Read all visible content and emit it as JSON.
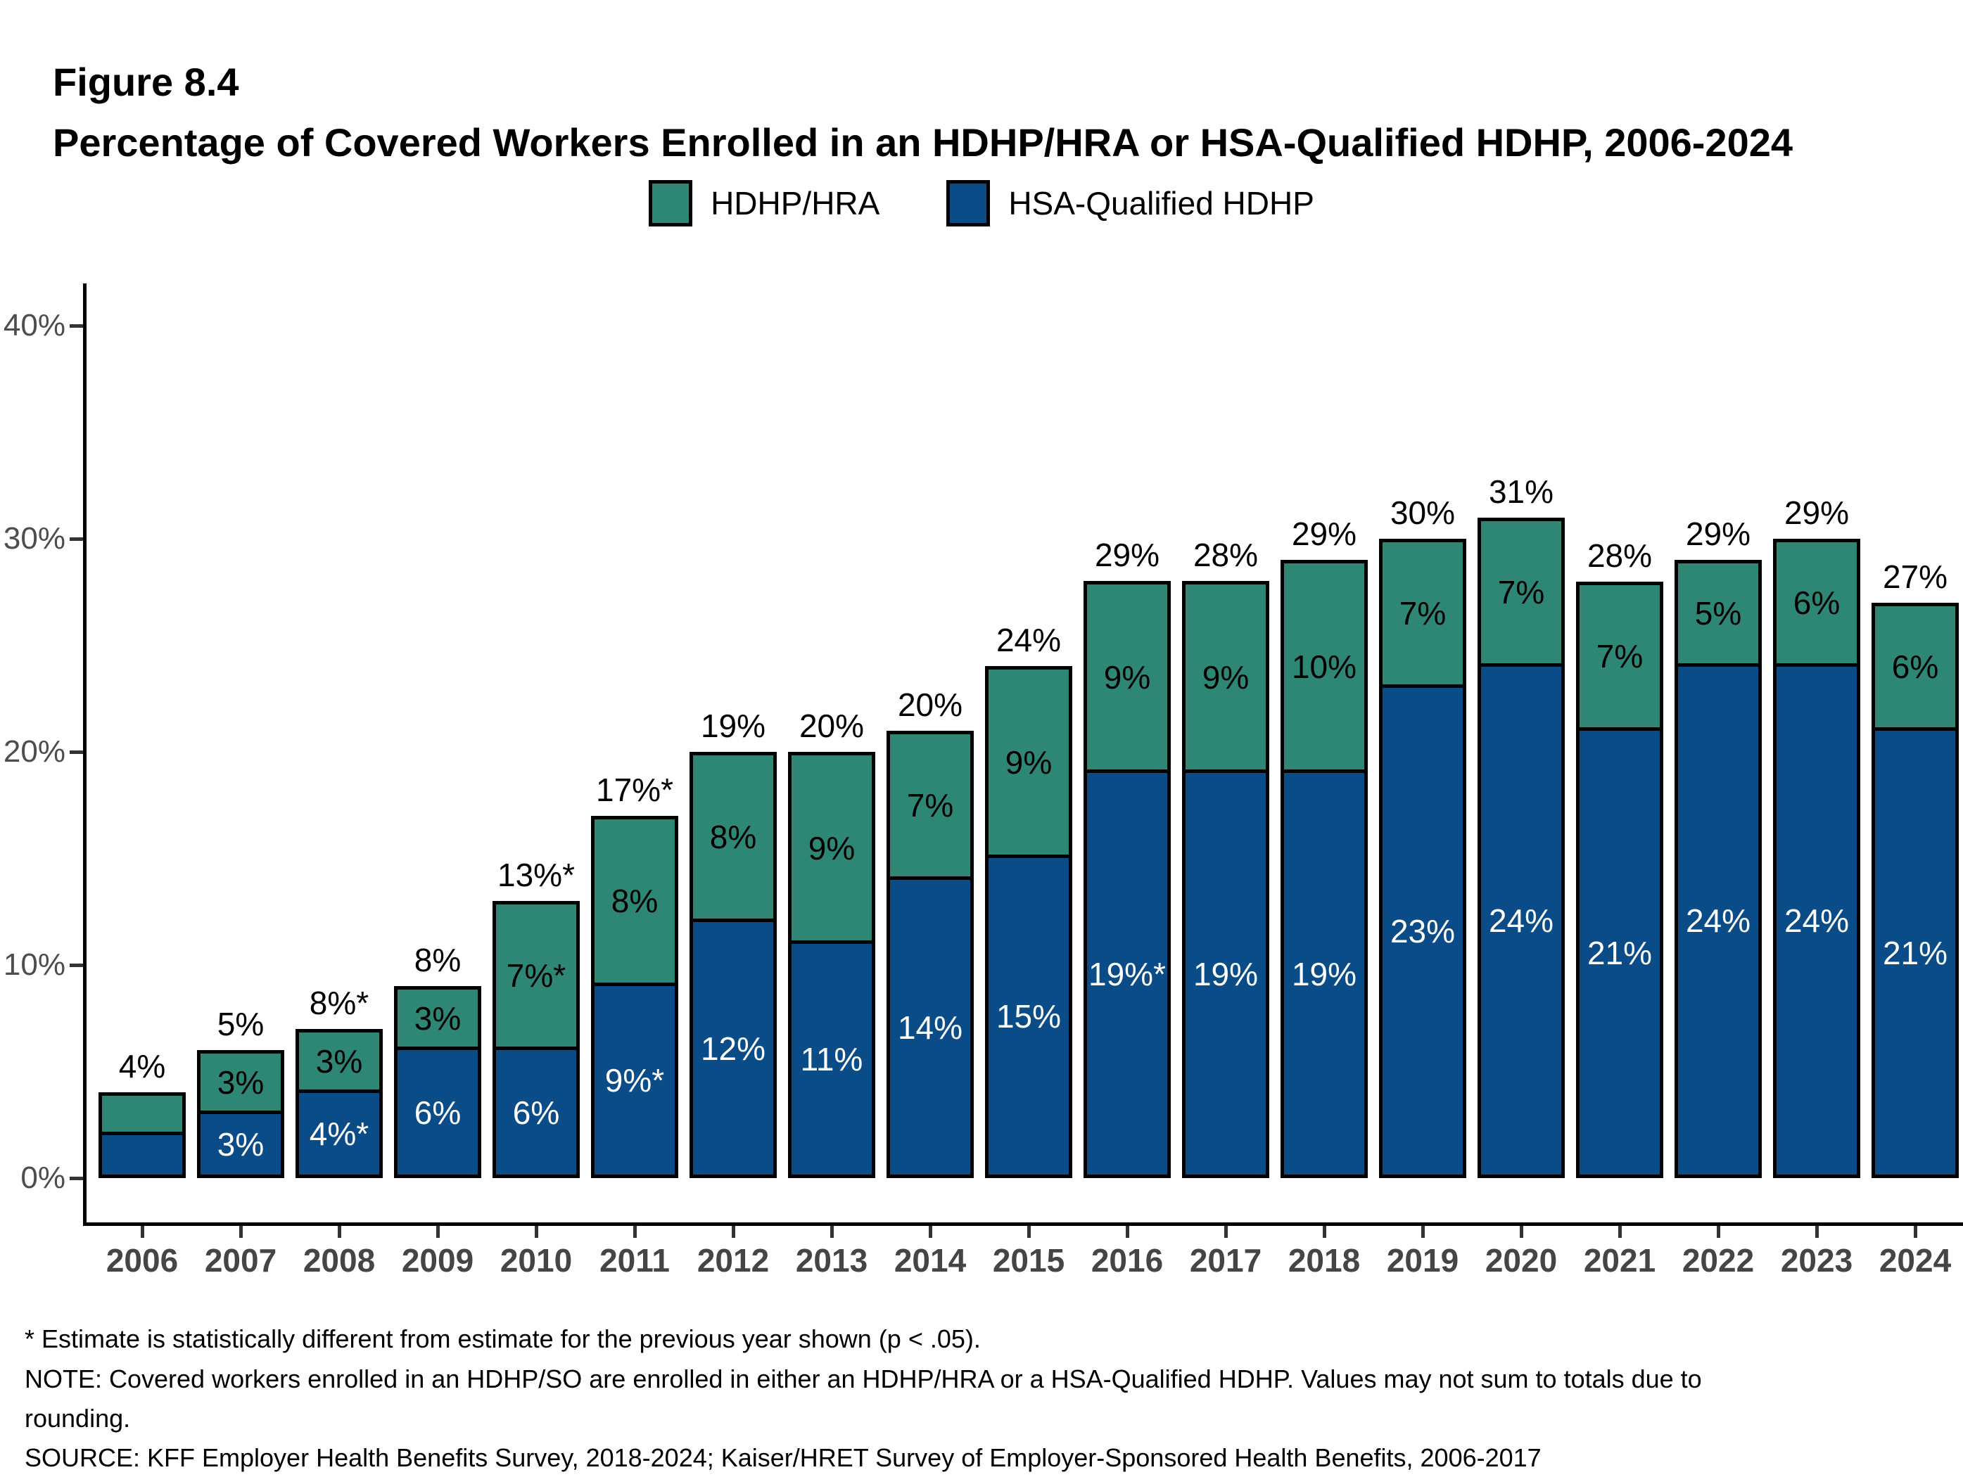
{
  "figure": {
    "label": "Figure 8.4",
    "title": "Percentage of Covered Workers Enrolled in an HDHP/HRA or HSA-Qualified HDHP, 2006-2024"
  },
  "legend": {
    "items": [
      {
        "label": "HDHP/HRA",
        "color": "#2E8775"
      },
      {
        "label": "HSA-Qualified HDHP",
        "color": "#0A4C87"
      }
    ]
  },
  "colors": {
    "hdhp_hra_green": "#2E8775",
    "hsa_qualified_blue": "#0A4C87",
    "bar_border": "#000000",
    "axis_line": "#000000",
    "tick_mark": "#333333",
    "y_tick_label_text": "#4d4d4d",
    "year_label_text": "#454545",
    "segment_label_on_green": "#000000",
    "segment_label_on_blue": "#ffffff"
  },
  "y_axis": {
    "tick_labels": [
      "40%",
      "30%",
      "20%",
      "10%",
      "0%"
    ],
    "tick_percents": [
      40,
      30,
      20,
      10,
      0
    ]
  },
  "chart_data": {
    "type": "bar",
    "stacked": true,
    "title": "Percentage of Covered Workers Enrolled in an HDHP/HRA or HSA-Qualified HDHP, 2006-2024",
    "xlabel": "",
    "ylabel": "",
    "ylim": [
      0,
      42
    ],
    "grid": false,
    "legend_position": "top",
    "categories": [
      "2006",
      "2007",
      "2008",
      "2009",
      "2010",
      "2011",
      "2012",
      "2013",
      "2014",
      "2015",
      "2016",
      "2017",
      "2018",
      "2019",
      "2020",
      "2021",
      "2022",
      "2023",
      "2024"
    ],
    "series": [
      {
        "name": "HSA-Qualified HDHP",
        "color": "#0A4C87",
        "values": [
          2,
          3,
          4,
          6,
          6,
          9,
          12,
          11,
          14,
          15,
          19,
          19,
          19,
          23,
          24,
          21,
          24,
          24,
          21
        ],
        "labels": [
          "",
          "3%",
          "4%*",
          "6%",
          "6%",
          "9%*",
          "12%",
          "11%",
          "14%",
          "15%",
          "19%*",
          "19%",
          "19%",
          "23%",
          "24%",
          "21%",
          "24%",
          "24%",
          "21%"
        ]
      },
      {
        "name": "HDHP/HRA",
        "color": "#2E8775",
        "values": [
          2,
          3,
          3,
          3,
          7,
          8,
          8,
          9,
          7,
          9,
          9,
          9,
          10,
          7,
          7,
          7,
          5,
          6,
          6
        ],
        "labels": [
          "",
          "3%",
          "3%",
          "3%",
          "7%*",
          "8%",
          "8%",
          "9%",
          "7%",
          "9%",
          "9%",
          "9%",
          "10%",
          "7%",
          "7%",
          "7%",
          "5%",
          "6%",
          "6%"
        ]
      }
    ],
    "totals": [
      "4%",
      "5%",
      "8%*",
      "8%",
      "13%*",
      "17%*",
      "19%",
      "20%",
      "20%",
      "24%",
      "29%",
      "28%",
      "29%",
      "30%",
      "31%",
      "28%",
      "29%",
      "29%",
      "27%"
    ]
  },
  "notes": {
    "asterisk": "* Estimate is statistically different from estimate for the previous year shown (p < .05).",
    "note_line1": "NOTE: Covered workers enrolled in an HDHP/SO are enrolled in either an HDHP/HRA or a HSA-Qualified HDHP. Values may not sum to totals due to",
    "note_line2": "rounding.",
    "source": "SOURCE: KFF Employer Health Benefits Survey, 2018-2024; Kaiser/HRET Survey of Employer-Sponsored Health Benefits, 2006-2017"
  }
}
